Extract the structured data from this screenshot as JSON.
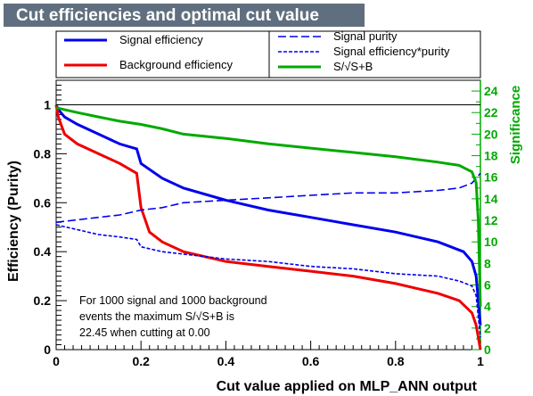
{
  "chart_data": {
    "type": "line",
    "title": "Cut efficiencies and optimal cut value",
    "xlabel": "Cut value applied on MLP_ANN output",
    "ylabel": "Efficiency (Purity)",
    "y2label": "Significance",
    "xlim": [
      0,
      1
    ],
    "ylim": [
      0,
      1.1
    ],
    "y2lim": [
      0,
      25
    ],
    "x_ticks": [
      "0",
      "0.2",
      "0.4",
      "0.6",
      "0.8",
      "1"
    ],
    "y_ticks": [
      "0",
      "0.2",
      "0.4",
      "0.6",
      "0.8",
      "1"
    ],
    "y2_ticks": [
      "0",
      "2",
      "4",
      "6",
      "8",
      "10",
      "12",
      "14",
      "16",
      "18",
      "20",
      "22",
      "24"
    ],
    "reference_line_y": 1.0,
    "series": [
      {
        "name": "Signal efficiency",
        "color": "#0000ee",
        "style": "solid",
        "axis": "left",
        "x": [
          0,
          0.005,
          0.02,
          0.05,
          0.1,
          0.15,
          0.19,
          0.2,
          0.25,
          0.3,
          0.4,
          0.5,
          0.6,
          0.7,
          0.8,
          0.85,
          0.9,
          0.93,
          0.96,
          0.98,
          0.99,
          1.0
        ],
        "y": [
          1.0,
          0.98,
          0.95,
          0.92,
          0.88,
          0.84,
          0.82,
          0.76,
          0.7,
          0.66,
          0.61,
          0.57,
          0.54,
          0.51,
          0.48,
          0.46,
          0.44,
          0.42,
          0.4,
          0.36,
          0.3,
          0.1
        ]
      },
      {
        "name": "Background efficiency",
        "color": "#ee0000",
        "style": "solid",
        "axis": "left",
        "x": [
          0,
          0.005,
          0.02,
          0.05,
          0.1,
          0.15,
          0.19,
          0.2,
          0.22,
          0.25,
          0.3,
          0.4,
          0.5,
          0.6,
          0.7,
          0.8,
          0.85,
          0.9,
          0.95,
          0.98,
          0.99,
          1.0
        ],
        "y": [
          1.0,
          0.95,
          0.88,
          0.84,
          0.8,
          0.76,
          0.72,
          0.58,
          0.48,
          0.44,
          0.4,
          0.36,
          0.34,
          0.32,
          0.3,
          0.27,
          0.25,
          0.23,
          0.2,
          0.15,
          0.1,
          0.0
        ]
      },
      {
        "name": "Signal purity",
        "color": "#0000ee",
        "style": "dashed",
        "axis": "left",
        "x": [
          0,
          0.05,
          0.1,
          0.15,
          0.2,
          0.25,
          0.3,
          0.4,
          0.5,
          0.6,
          0.7,
          0.8,
          0.9,
          0.95,
          0.98,
          1.0
        ],
        "y": [
          0.52,
          0.53,
          0.54,
          0.55,
          0.57,
          0.58,
          0.6,
          0.61,
          0.62,
          0.63,
          0.64,
          0.64,
          0.65,
          0.66,
          0.68,
          0.72
        ]
      },
      {
        "name": "Signal efficiency*purity",
        "color": "#0000ee",
        "style": "dotted",
        "axis": "left",
        "x": [
          0,
          0.05,
          0.1,
          0.15,
          0.19,
          0.2,
          0.25,
          0.3,
          0.4,
          0.5,
          0.6,
          0.7,
          0.8,
          0.9,
          0.95,
          0.98,
          0.99,
          1.0
        ],
        "y": [
          0.51,
          0.49,
          0.47,
          0.46,
          0.45,
          0.42,
          0.4,
          0.39,
          0.37,
          0.36,
          0.34,
          0.33,
          0.31,
          0.3,
          0.28,
          0.26,
          0.22,
          0.05
        ]
      },
      {
        "name": "S/√S+B",
        "color": "#00aa00",
        "style": "solid",
        "axis": "right",
        "x": [
          0,
          0.05,
          0.1,
          0.15,
          0.2,
          0.25,
          0.3,
          0.4,
          0.5,
          0.6,
          0.7,
          0.8,
          0.9,
          0.95,
          0.98,
          0.99,
          0.995,
          1.0
        ],
        "y": [
          22.45,
          22.0,
          21.6,
          21.2,
          20.9,
          20.5,
          20.0,
          19.6,
          19.1,
          18.7,
          18.3,
          17.9,
          17.4,
          17.1,
          16.5,
          15.5,
          12.0,
          4.0
        ]
      }
    ],
    "annotation": [
      "For 1000 signal and 1000 background",
      "events the maximum S/√S+B is",
      "22.45 when cutting at  0.00"
    ]
  }
}
